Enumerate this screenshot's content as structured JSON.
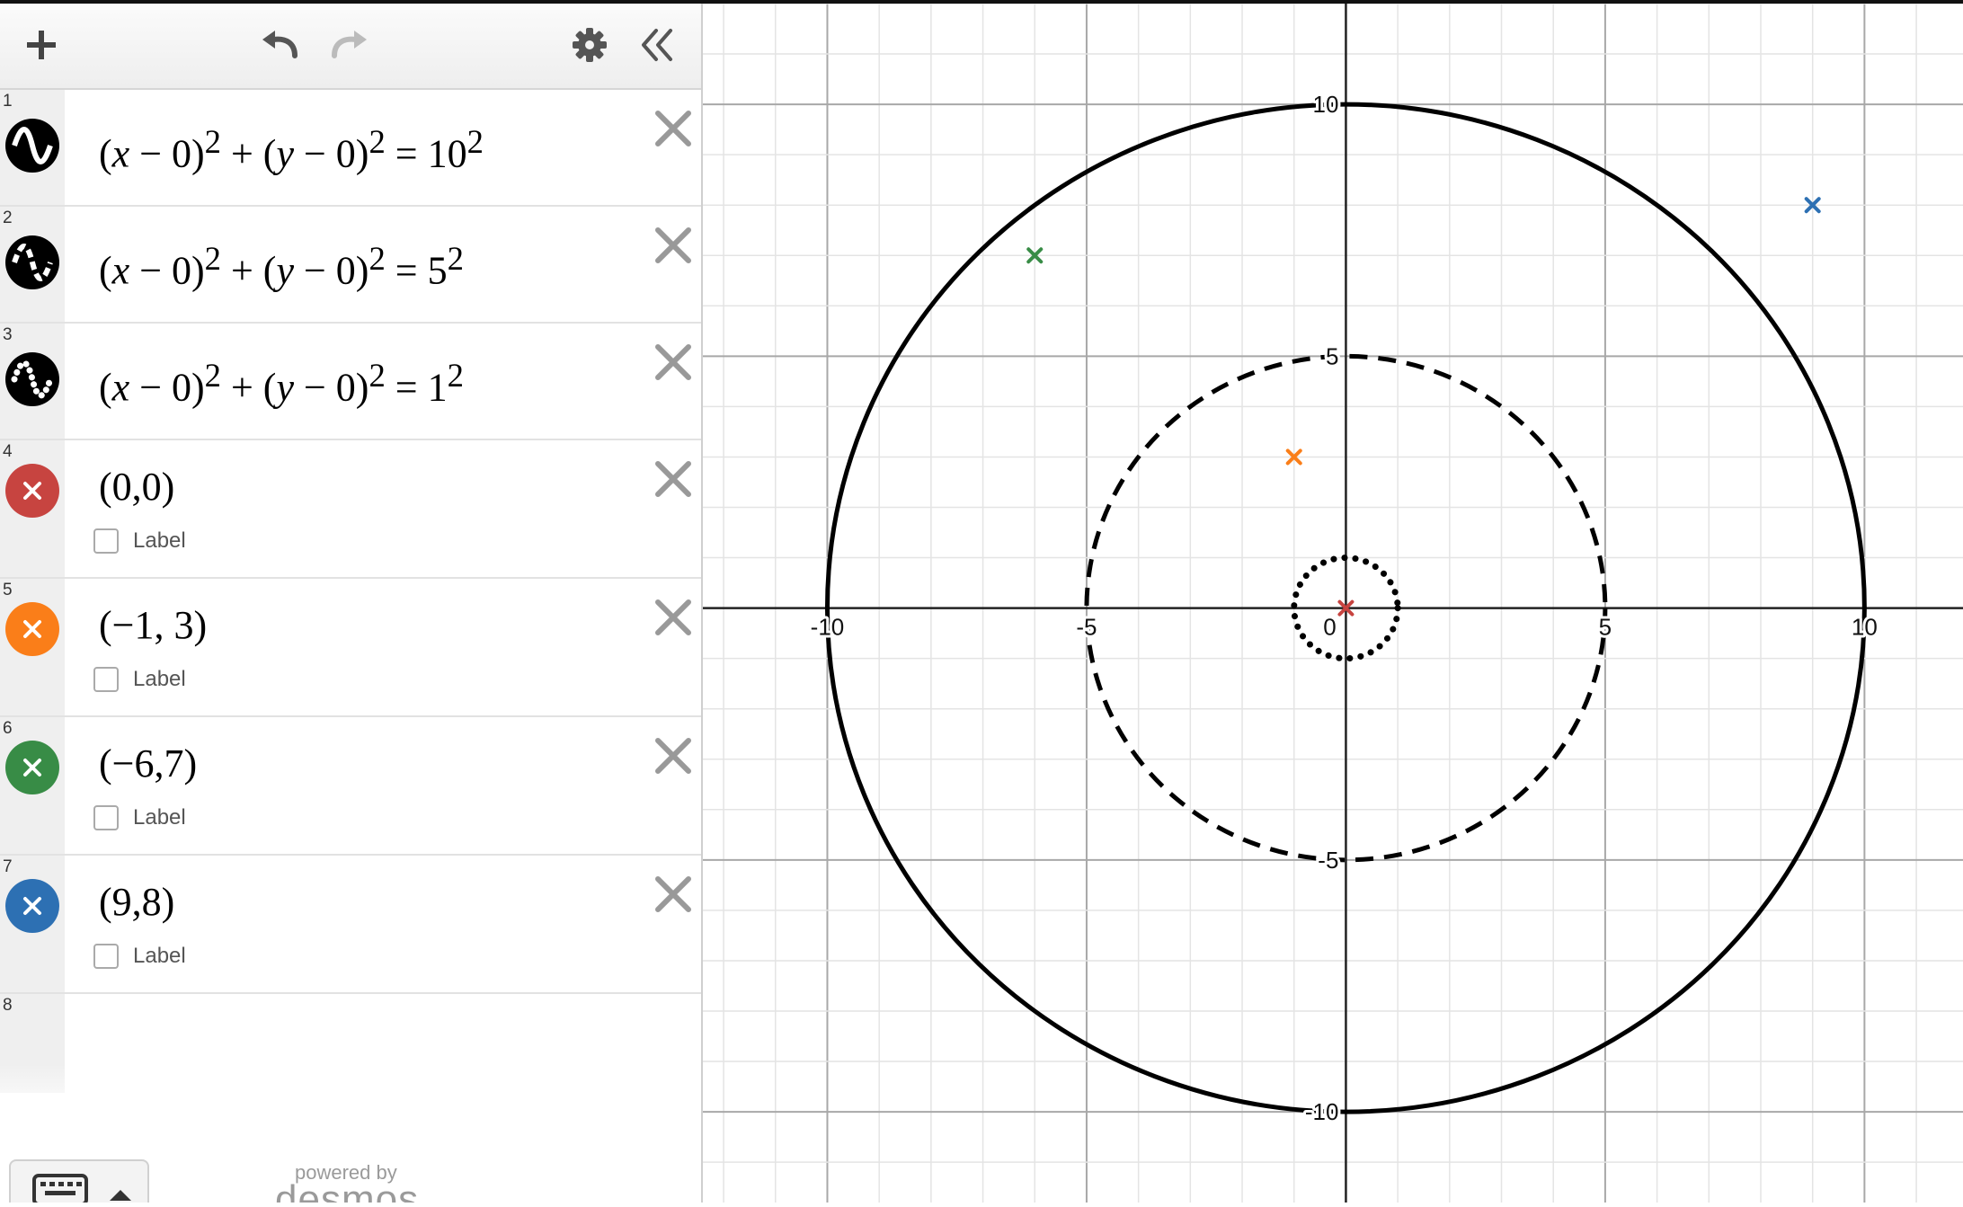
{
  "toolbar": {
    "add_icon": "plus-icon",
    "undo_icon": "undo-icon",
    "redo_icon": "redo-icon",
    "settings_icon": "gear-icon",
    "collapse_icon": "double-chevron-left-icon"
  },
  "expressions": [
    {
      "num": "1",
      "type": "circle",
      "h": 0,
      "k": 0,
      "r": 10,
      "r_text": "10",
      "style": "solid",
      "icon": "wave-solid-icon"
    },
    {
      "num": "2",
      "type": "circle",
      "h": 0,
      "k": 0,
      "r": 5,
      "r_text": "5",
      "style": "dashed",
      "icon": "wave-dashed-icon"
    },
    {
      "num": "3",
      "type": "circle",
      "h": 0,
      "k": 0,
      "r": 1,
      "r_text": "1",
      "style": "dotted",
      "icon": "wave-dotted-icon"
    },
    {
      "num": "4",
      "type": "point",
      "text": "(0,0)",
      "x": 0,
      "y": 0,
      "color": "#c74440",
      "label": "Label"
    },
    {
      "num": "5",
      "type": "point",
      "text": "(−1, 3)",
      "x": -1,
      "y": 3,
      "color": "#fa7e19",
      "label": "Label"
    },
    {
      "num": "6",
      "type": "point",
      "text": "(−6,7)",
      "x": -6,
      "y": 7,
      "color": "#388c46",
      "label": "Label"
    },
    {
      "num": "7",
      "type": "point",
      "text": "(9,8)",
      "x": 9,
      "y": 8,
      "color": "#2d70b3",
      "label": "Label"
    },
    {
      "num": "8",
      "type": "empty"
    }
  ],
  "graph": {
    "x_range": [
      -12.4,
      11.9
    ],
    "y_range": [
      -11.8,
      12.0
    ],
    "minor_step": 1,
    "major_step": 5,
    "x_ticks": [
      "-10",
      "-5",
      "0",
      "5",
      "10"
    ],
    "y_ticks": [
      "10",
      "5",
      "-5",
      "-10"
    ]
  },
  "footer": {
    "keypad_icon": "keyboard-icon",
    "powered_by": "powered by",
    "brand": "desmos"
  }
}
